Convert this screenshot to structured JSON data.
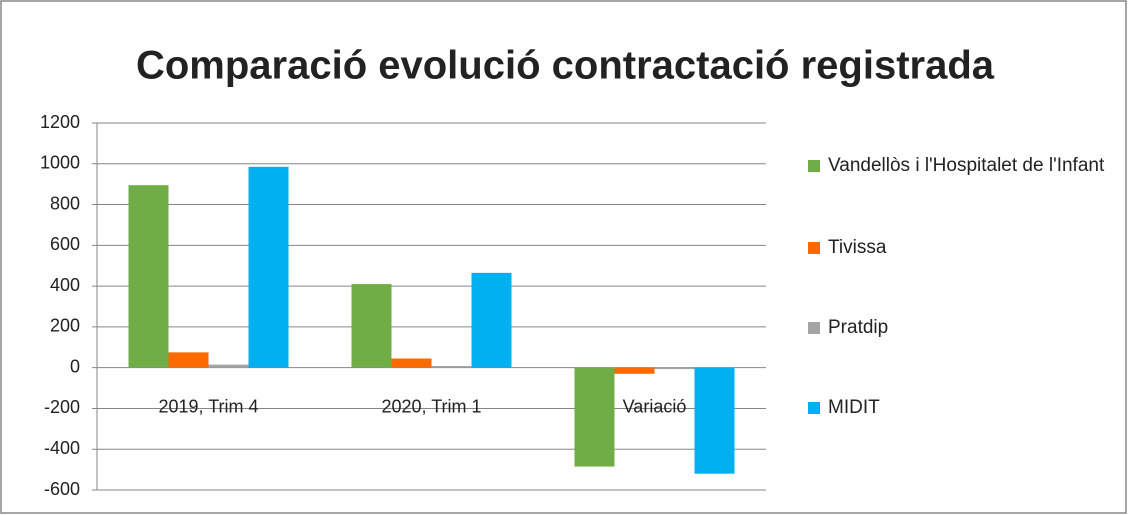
{
  "chart_data": {
    "type": "bar",
    "title": "Comparació evolució contractació registrada",
    "categories": [
      "2019, Trim 4",
      "2020, Trim 1",
      "Variació"
    ],
    "series": [
      {
        "name": "Vandellòs i l'Hospitalet de l'Infant",
        "color": "#70ad47",
        "values": [
          895,
          410,
          -485
        ]
      },
      {
        "name": "Tivissa",
        "color": "#ff6a00",
        "values": [
          75,
          45,
          -30
        ]
      },
      {
        "name": "Pratdip",
        "color": "#a5a5a5",
        "values": [
          15,
          8,
          -7
        ]
      },
      {
        "name": "MIDIT",
        "color": "#00b0f0",
        "values": [
          985,
          465,
          -520
        ]
      }
    ],
    "ylim": [
      -600,
      1200
    ],
    "yticks": [
      -600,
      -400,
      -200,
      0,
      200,
      400,
      600,
      800,
      1000,
      1200
    ],
    "grid": true,
    "legend": "right"
  }
}
